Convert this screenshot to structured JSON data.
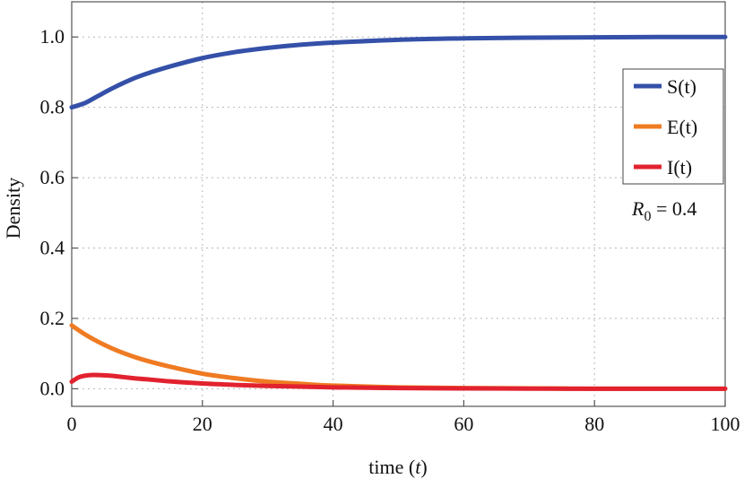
{
  "chart_data": {
    "type": "line",
    "title": "",
    "xlabel": "time",
    "xlabel_var": "t",
    "ylabel": "Density",
    "xlim": [
      0,
      100
    ],
    "ylim": [
      -0.05,
      1.1
    ],
    "xticks": [
      0,
      20,
      40,
      60,
      80,
      100
    ],
    "xtick_labels": [
      "0",
      "20",
      "40",
      "60",
      "80",
      "100"
    ],
    "yticks": [
      0.0,
      0.2,
      0.4,
      0.6,
      0.8,
      1.0
    ],
    "ytick_labels": [
      "0.0",
      "0.2",
      "0.4",
      "0.6",
      "0.8",
      "1.0"
    ],
    "grid": true,
    "legend_position": "right",
    "annotation": {
      "symbol": "R",
      "subscript": "0",
      "text": " = 0.4"
    },
    "series": [
      {
        "name": "S(t)",
        "color": "#3450a8",
        "x": [
          0,
          2,
          4,
          6,
          8,
          10,
          12,
          15,
          20,
          25,
          30,
          35,
          40,
          50,
          60,
          70,
          80,
          90,
          100
        ],
        "values": [
          0.8,
          0.812,
          0.832,
          0.852,
          0.87,
          0.886,
          0.899,
          0.916,
          0.94,
          0.957,
          0.969,
          0.978,
          0.984,
          0.992,
          0.996,
          0.998,
          0.999,
          1.0,
          1.0
        ]
      },
      {
        "name": "E(t)",
        "color": "#ef7b22",
        "x": [
          0,
          2,
          4,
          6,
          8,
          10,
          12,
          15,
          20,
          25,
          30,
          35,
          40,
          50,
          60,
          70,
          80,
          90,
          100
        ],
        "values": [
          0.18,
          0.155,
          0.134,
          0.116,
          0.101,
          0.088,
          0.077,
          0.063,
          0.043,
          0.03,
          0.02,
          0.014,
          0.009,
          0.004,
          0.002,
          0.001,
          0.0,
          0.0,
          0.0
        ]
      },
      {
        "name": "I(t)",
        "color": "#e2222f",
        "x": [
          0,
          1,
          2,
          3,
          4,
          6,
          8,
          10,
          12,
          15,
          20,
          25,
          30,
          35,
          40,
          50,
          60,
          70,
          80,
          90,
          100
        ],
        "values": [
          0.02,
          0.032,
          0.037,
          0.039,
          0.039,
          0.037,
          0.033,
          0.029,
          0.026,
          0.021,
          0.015,
          0.011,
          0.008,
          0.006,
          0.004,
          0.002,
          0.001,
          0.0005,
          0.0,
          0.0,
          0.0
        ]
      }
    ]
  }
}
